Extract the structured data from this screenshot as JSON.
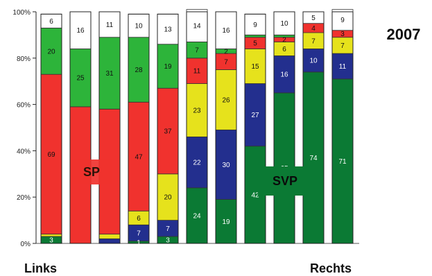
{
  "chart_data": {
    "type": "bar",
    "stacked": true,
    "normalized": true,
    "categories": [
      "",
      "",
      "",
      "",
      "",
      "",
      "",
      "",
      "",
      "",
      "",
      ""
    ],
    "series": [
      {
        "key": "dark_green",
        "color": "#0b7a34",
        "values": [
          3,
          0,
          0,
          1,
          3,
          24,
          19,
          42,
          65,
          74,
          71,
          71
        ],
        "labels": [
          "3",
          "",
          "",
          "1",
          "3",
          "24",
          "19",
          "42",
          "65",
          "74",
          "71",
          ""
        ]
      },
      {
        "key": "blue",
        "color": "#232f8e",
        "values": [
          0,
          0,
          2,
          7,
          7,
          22,
          30,
          27,
          16,
          10,
          11,
          11
        ],
        "labels": [
          "",
          "",
          "",
          "7",
          "7",
          "22",
          "30",
          "27",
          "16",
          "10",
          "11",
          ""
        ]
      },
      {
        "key": "yellow",
        "color": "#e6e21c",
        "values": [
          1,
          0,
          2,
          6,
          20,
          23,
          26,
          15,
          6,
          7,
          7,
          7
        ],
        "labels": [
          "",
          "",
          "",
          "6",
          "20",
          "23",
          "26",
          "15",
          "6",
          "7",
          "7",
          ""
        ]
      },
      {
        "key": "red",
        "color": "#f0322e",
        "values": [
          69,
          59,
          54,
          47,
          37,
          11,
          7,
          5,
          2,
          4,
          3,
          3
        ],
        "labels": [
          "69",
          "",
          "",
          "47",
          "37",
          "11",
          "7",
          "5",
          "2",
          "4",
          "3",
          ""
        ]
      },
      {
        "key": "light_green",
        "color": "#2db43a",
        "values": [
          20,
          25,
          31,
          28,
          19,
          7,
          2,
          1,
          1,
          0,
          0,
          0
        ],
        "labels": [
          "20",
          "25",
          "31",
          "28",
          "19",
          "7",
          "2",
          "",
          "",
          "",
          "",
          ""
        ]
      },
      {
        "key": "white",
        "color": "#ffffff",
        "values": [
          6,
          16,
          11,
          10,
          13,
          14,
          16,
          9,
          10,
          5,
          9,
          9
        ],
        "labels": [
          "6",
          "16",
          "11",
          "10",
          "13",
          "14",
          "16",
          "9",
          "10",
          "5",
          "9",
          ""
        ]
      }
    ],
    "bars_shown": 11,
    "yaxis": {
      "ticks": [
        "0%",
        "20%",
        "40%",
        "60%",
        "80%",
        "100%"
      ],
      "ylim": [
        0,
        100
      ]
    },
    "title": "2007",
    "xlabel_left": "Links",
    "xlabel_right": "Rechts",
    "annotations": [
      {
        "text": "SP",
        "bg": "#f0322e",
        "fg": "#2a1208"
      },
      {
        "text": "SVP",
        "bg": "#0b7a34",
        "fg": "#0a0a0a"
      }
    ]
  }
}
